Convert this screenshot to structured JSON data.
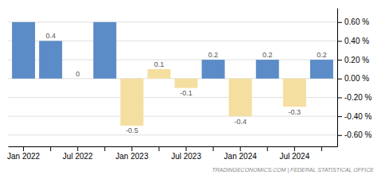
{
  "chart_data": {
    "type": "bar",
    "categories": [
      "Jan 2022",
      null,
      "Jul 2022",
      null,
      "Jan 2023",
      null,
      "Jul 2023",
      null,
      "Jan 2024",
      null,
      "Jul 2024",
      null
    ],
    "values": [
      0.6,
      0.4,
      0.0,
      0.6,
      -0.5,
      0.1,
      -0.1,
      0.2,
      -0.4,
      0.2,
      -0.3,
      0.2
    ],
    "value_labels": [
      null,
      "0.4",
      "0",
      null,
      "-0.5",
      "0.1",
      "-0.1",
      "0.2",
      "-0.4",
      "0.2",
      "-0.3",
      "0.2"
    ],
    "data_labels": true,
    "colors": [
      "#5b8cc8",
      "#5b8cc8",
      "#5b8cc8",
      "#5b8cc8",
      "#f5dfa0",
      "#f5dfa0",
      "#f5dfa0",
      "#5b8cc8",
      "#f5dfa0",
      "#5b8cc8",
      "#f5dfa0",
      "#5b8cc8"
    ],
    "ylim": [
      -0.72,
      0.75
    ],
    "yticks": [
      {
        "value": -0.6,
        "label": "-0.60 %"
      },
      {
        "value": -0.4,
        "label": "-0.40 %"
      },
      {
        "value": -0.2,
        "label": "-0.20 %"
      },
      {
        "value": 0.0,
        "label": "0.00 %"
      },
      {
        "value": 0.2,
        "label": "0.20 %"
      },
      {
        "value": 0.4,
        "label": "0.40 %"
      },
      {
        "value": 0.6,
        "label": "0.60 %"
      }
    ],
    "grid": true,
    "annotations": [
      "TRADINGECONOMICS.COM | FEDERAL STATISTICAL OFFICE"
    ]
  }
}
